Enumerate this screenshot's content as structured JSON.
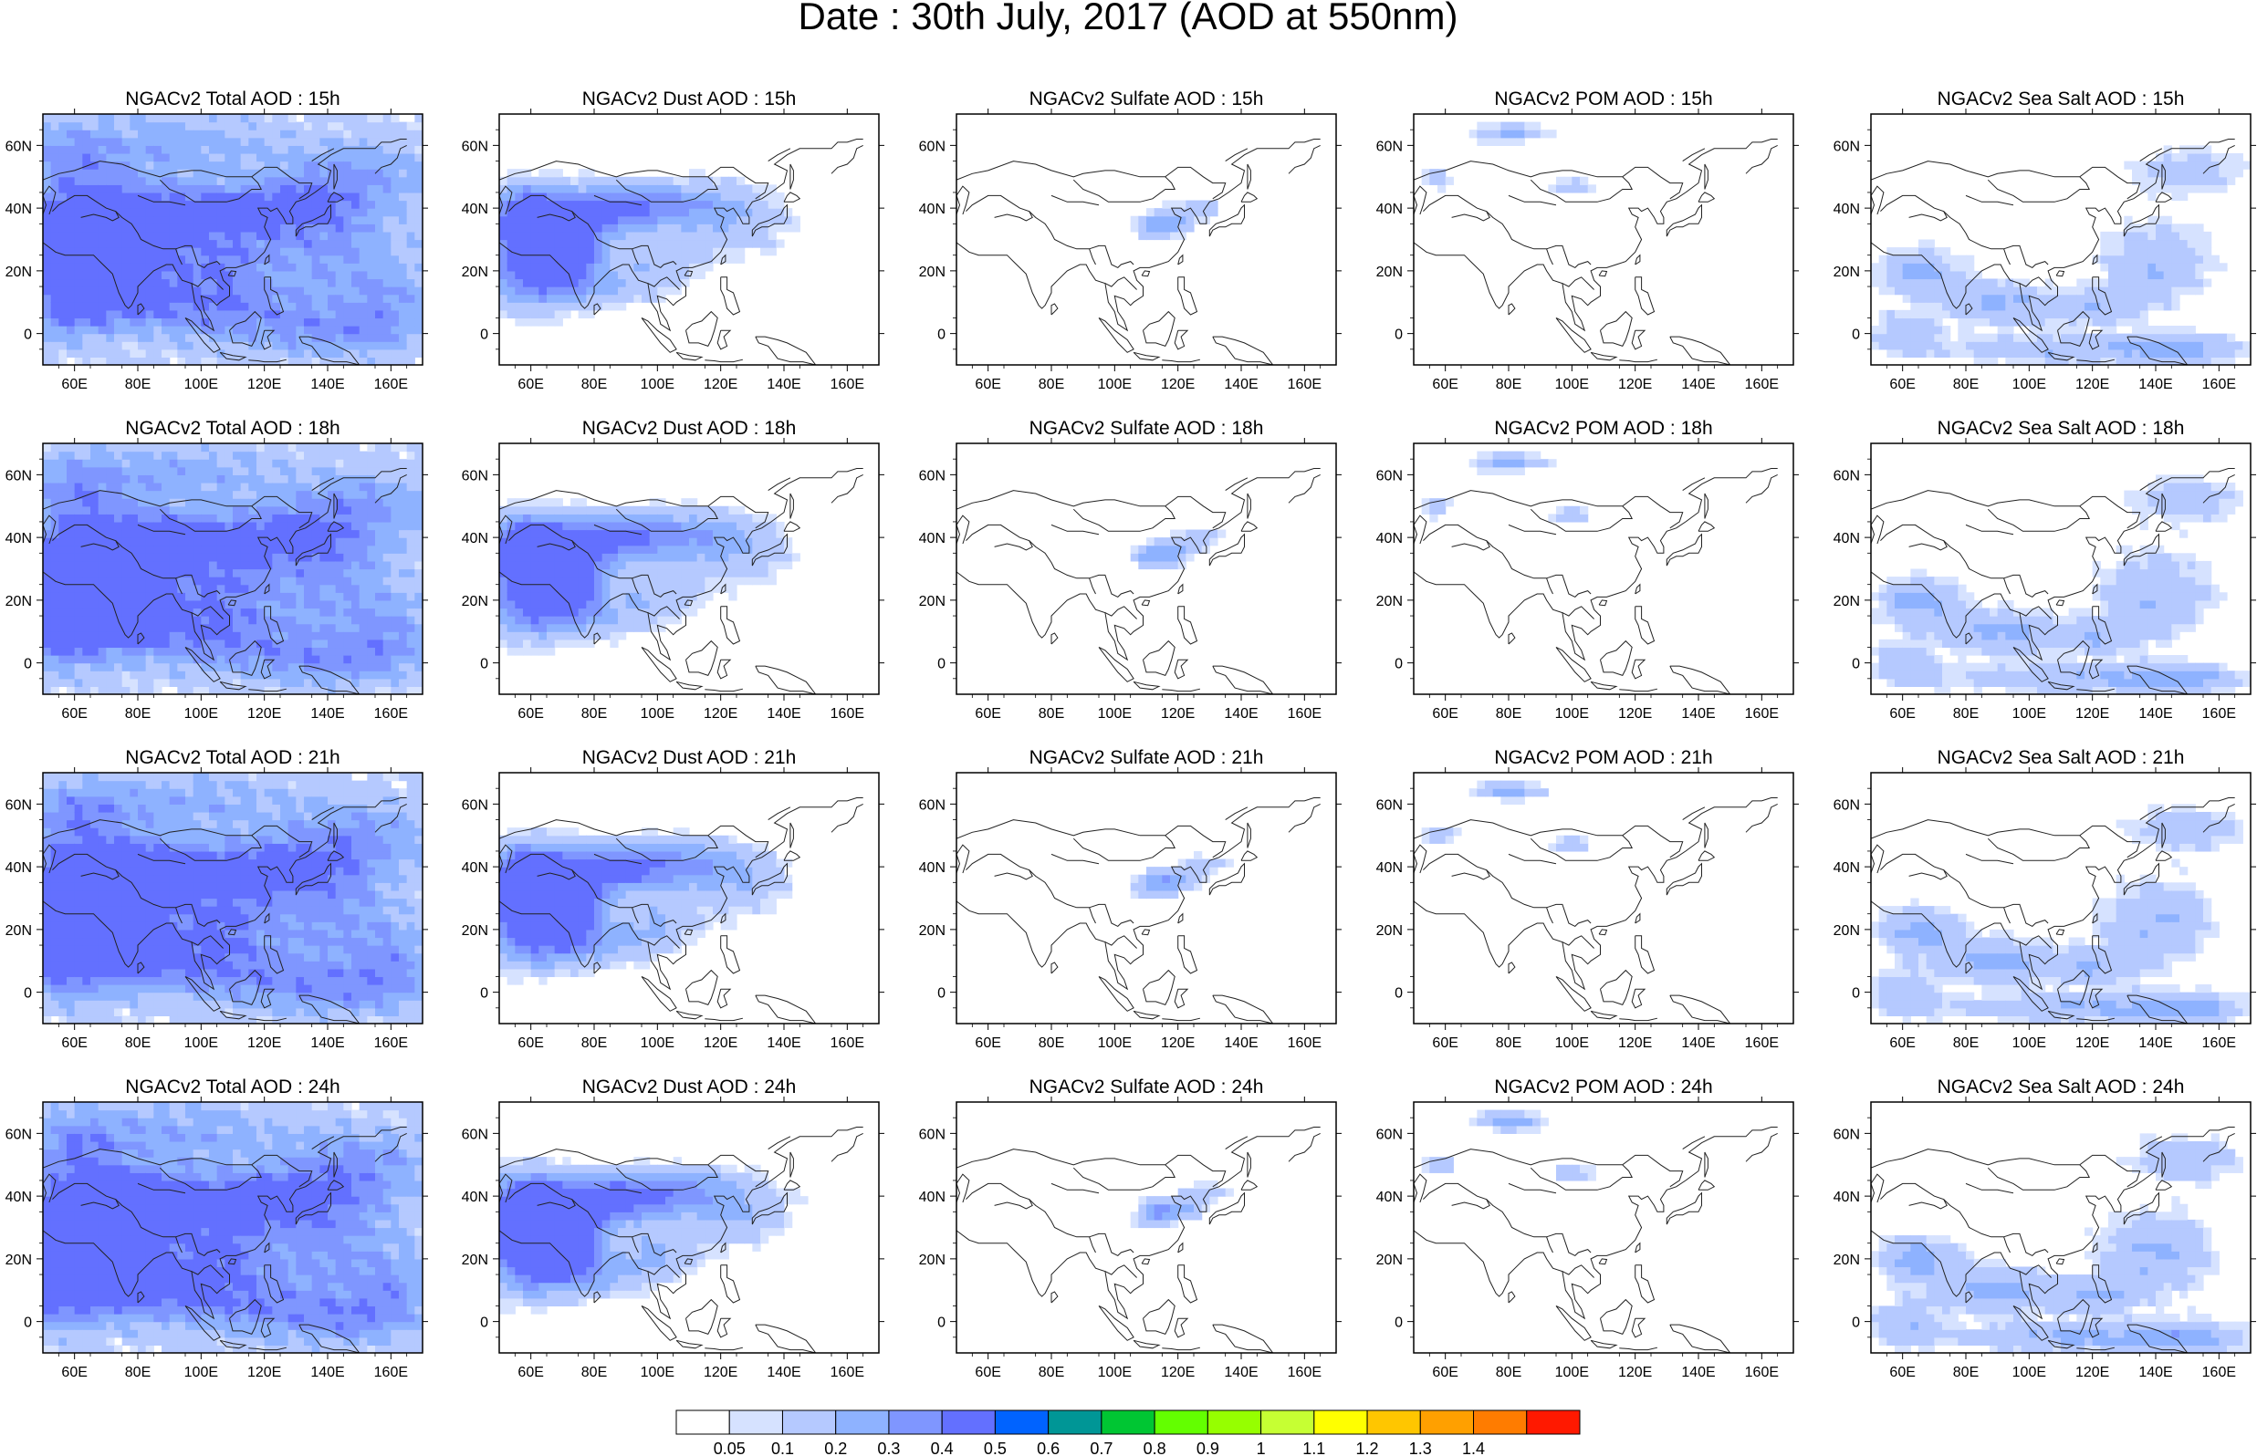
{
  "title": "Date : 30th July, 2017 (AOD at 550nm)",
  "model": "NGACv2",
  "hours": [
    "15h",
    "18h",
    "21h",
    "24h"
  ],
  "species": [
    {
      "key": "total",
      "label": "Total AOD"
    },
    {
      "key": "dust",
      "label": "Dust AOD"
    },
    {
      "key": "sulfate",
      "label": "Sulfate AOD"
    },
    {
      "key": "pom",
      "label": "POM AOD"
    },
    {
      "key": "seasalt",
      "label": "Sea Salt AOD"
    }
  ],
  "panel_titles": [
    [
      "NGACv2 Total AOD : 15h",
      "NGACv2 Dust AOD : 15h",
      "NGACv2 Sulfate AOD : 15h",
      "NGACv2 POM AOD : 15h",
      "NGACv2 Sea Salt AOD : 15h"
    ],
    [
      "NGACv2 Total AOD : 18h",
      "NGACv2 Dust AOD : 18h",
      "NGACv2 Sulfate AOD : 18h",
      "NGACv2 POM AOD : 18h",
      "NGACv2 Sea Salt AOD : 18h"
    ],
    [
      "NGACv2 Total AOD : 21h",
      "NGACv2 Dust AOD : 21h",
      "NGACv2 Sulfate AOD : 21h",
      "NGACv2 POM AOD : 21h",
      "NGACv2 Sea Salt AOD : 21h"
    ],
    [
      "NGACv2 Total AOD : 24h",
      "NGACv2 Dust AOD : 24h",
      "NGACv2 Sulfate AOD : 24h",
      "NGACv2 POM AOD : 24h",
      "NGACv2 Sea Salt  AOD : 24h"
    ]
  ],
  "map": {
    "lon_range": [
      50,
      170
    ],
    "lat_range": [
      -10,
      70
    ],
    "lon_ticks": [
      60,
      80,
      100,
      120,
      140,
      160
    ],
    "lon_tick_labels": [
      "60E",
      "80E",
      "100E",
      "120E",
      "140E",
      "160E"
    ],
    "lat_ticks": [
      0,
      20,
      40,
      60
    ],
    "lat_tick_labels": [
      "0",
      "20N",
      "40N",
      "60N"
    ]
  },
  "colorbar": {
    "labels": [
      "0.05",
      "0.1",
      "0.2",
      "0.3",
      "0.4",
      "0.5",
      "0.6",
      "0.7",
      "0.8",
      "0.9",
      "1",
      "1.1",
      "1.2",
      "1.3",
      "1.4"
    ],
    "colors": [
      "#ffffff",
      "#d6e2ff",
      "#b5c9ff",
      "#8eb2ff",
      "#7f96ff",
      "#6370ff",
      "#0063ff",
      "#009696",
      "#00c633",
      "#63ff00",
      "#96ff00",
      "#c6ff33",
      "#ffff00",
      "#ffc600",
      "#ffa000",
      "#ff7c00",
      "#ff1900"
    ]
  }
}
